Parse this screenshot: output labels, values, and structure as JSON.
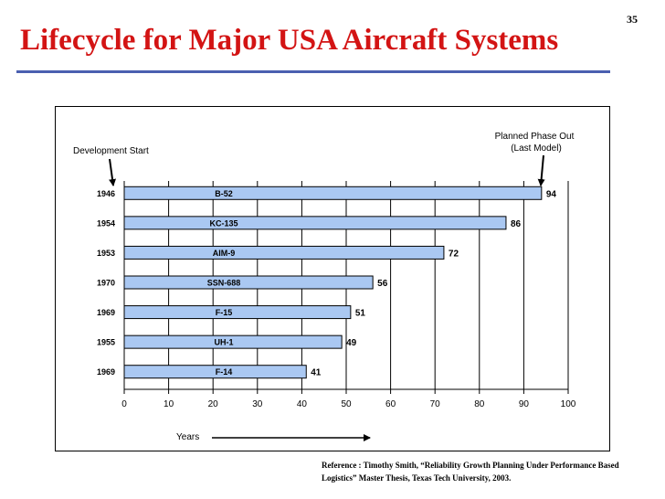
{
  "slide": {
    "number": "35",
    "title": "Lifecycle for Major USA Aircraft Systems",
    "title_color": "#d31414",
    "accent_color": "#4a5fb0"
  },
  "reference": {
    "line1": "Reference : Timothy Smith, “Reliability Growth Planning Under Performance Based",
    "line2": "Logistics” Master Thesis, Texas Tech University, 2003."
  },
  "chart_data": {
    "type": "bar",
    "orientation": "horizontal",
    "categories": [
      "B-52",
      "KC-135",
      "AIM-9",
      "SSN-688",
      "F-15",
      "UH-1",
      "F-14"
    ],
    "start_years": [
      "1946",
      "1954",
      "1953",
      "1970",
      "1969",
      "1955",
      "1969"
    ],
    "values": [
      94,
      86,
      72,
      56,
      51,
      49,
      41
    ],
    "xlim": [
      0,
      100
    ],
    "xticks": [
      "0",
      "10",
      "20",
      "30",
      "40",
      "50",
      "60",
      "70",
      "80",
      "90",
      "100"
    ],
    "xlabel": "Years",
    "grid": true,
    "bar_color": "#aac8f2",
    "annotations": {
      "development_start": "Development Start",
      "phase_out_line1": "Planned Phase Out",
      "phase_out_line2": "(Last Model)"
    }
  }
}
